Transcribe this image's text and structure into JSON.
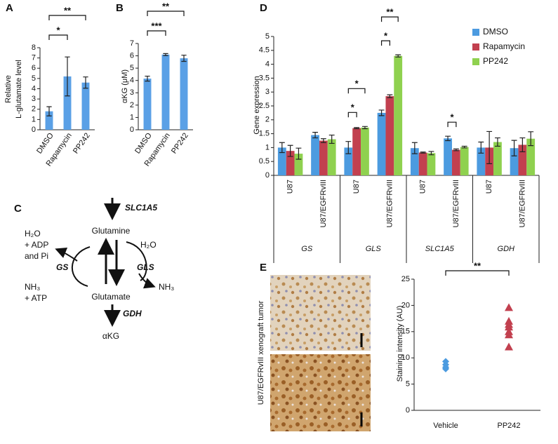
{
  "panel_labels": {
    "a": "A",
    "b": "B",
    "c": "C",
    "d": "D",
    "e": "E"
  },
  "chart_data": [
    {
      "type": "bar",
      "ylabel": [
        "Relative",
        "L-glutamate level"
      ],
      "categories": [
        "DMSO",
        "Rapamycin",
        "PP242"
      ],
      "values": [
        1.8,
        5.2,
        4.6
      ],
      "errors": [
        0.45,
        1.9,
        0.55
      ],
      "color": "#5aa0e6",
      "ylim": [
        0,
        8
      ],
      "yticks": [
        0,
        1,
        2,
        3,
        4,
        5,
        6,
        7,
        8
      ],
      "annotations": [
        {
          "label": "*",
          "from": 0,
          "to": 1
        },
        {
          "label": "**",
          "from": 0,
          "to": 2
        }
      ]
    },
    {
      "type": "bar",
      "ylabel": [
        "αKG (μM)"
      ],
      "categories": [
        "DMSO",
        "Rapamycin",
        "PP242"
      ],
      "values": [
        4.15,
        6.1,
        5.8
      ],
      "errors": [
        0.2,
        0.08,
        0.25
      ],
      "color": "#5aa0e6",
      "ylim": [
        0,
        7
      ],
      "yticks": [
        0,
        1,
        2,
        3,
        4,
        5,
        6,
        7
      ],
      "annotations": [
        {
          "label": "***",
          "from": 0,
          "to": 1
        },
        {
          "label": "**",
          "from": 0,
          "to": 2
        }
      ]
    },
    {
      "type": "bar",
      "ylabel": [
        "Gene expression"
      ],
      "categories": [
        "U87",
        "U87/EGFRvIII",
        "U87",
        "U87/EGFRvIII",
        "U87",
        "U87/EGFRvIII",
        "U87",
        "U87/EGFRvIII"
      ],
      "groups": [
        "GS",
        "GLS",
        "SLC1A5",
        "GDH"
      ],
      "series": [
        {
          "name": "DMSO",
          "color": "#4c9be0",
          "values": [
            1.0,
            1.45,
            1.0,
            2.25,
            0.98,
            1.33,
            1.0,
            0.98
          ],
          "errors": [
            0.18,
            0.1,
            0.22,
            0.1,
            0.2,
            0.08,
            0.2,
            0.28
          ]
        },
        {
          "name": "Rapamycin",
          "color": "#c2404f",
          "values": [
            0.88,
            1.25,
            1.7,
            2.85,
            0.82,
            0.92,
            1.0,
            1.1
          ],
          "errors": [
            0.2,
            0.07,
            0.02,
            0.05,
            0.02,
            0.03,
            0.58,
            0.25
          ]
        },
        {
          "name": "PP242",
          "color": "#8fd14f",
          "values": [
            0.78,
            1.3,
            1.72,
            4.3,
            0.8,
            1.02,
            1.2,
            1.32
          ],
          "errors": [
            0.2,
            0.15,
            0.04,
            0.04,
            0.06,
            0.03,
            0.15,
            0.25
          ]
        }
      ],
      "ylim": [
        0,
        5
      ],
      "yticks": [
        0,
        0.5,
        1,
        1.5,
        2,
        2.5,
        3,
        3.5,
        4,
        4.5,
        5
      ],
      "legend": "upper right",
      "annotations": [
        {
          "label": "*",
          "category": 2,
          "from": 0,
          "to": 1
        },
        {
          "label": "*",
          "category": 2,
          "from": 0,
          "to": 2
        },
        {
          "label": "*",
          "category": 3,
          "from": 0,
          "to": 1
        },
        {
          "label": "**",
          "category": 3,
          "from": 0,
          "to": 2
        },
        {
          "label": "*",
          "category": 5,
          "from": 0,
          "to": 1
        }
      ]
    },
    {
      "type": "scatter",
      "ylabel": [
        "Staining intensity (AU)"
      ],
      "categories": [
        "Vehicle",
        "PP242"
      ],
      "series": [
        {
          "color": "#4c9be0",
          "marker": "diamond",
          "values": [
            9.3,
            8.7,
            8.2,
            7.9
          ]
        },
        {
          "color": "#c2404f",
          "marker": "triangle",
          "values": [
            19.6,
            17.0,
            16.4,
            15.9,
            15.0,
            14.4,
            12.1
          ]
        }
      ],
      "ylim": [
        0,
        25
      ],
      "yticks": [
        0,
        5,
        10,
        15,
        20,
        25
      ],
      "annotations": [
        {
          "label": "**",
          "from": 0,
          "to": 1
        }
      ]
    }
  ],
  "diagram": {
    "slc1a5": "SLC1A5",
    "glutamine": "Glutamine",
    "h2o_left": "H₂O",
    "adp": "+ ADP",
    "pi": "and Pi",
    "gs": "GS",
    "gls": "GLS",
    "h2o_right": "H₂O",
    "nh3_right": "NH₃",
    "nh3_left": "NH₃",
    "atp": "+ ATP",
    "glutamate": "Glutamate",
    "gdh": "GDH",
    "akg": "αKG"
  },
  "images": {
    "ylabel": "U87/EGFRvIII xenograft tumor"
  }
}
